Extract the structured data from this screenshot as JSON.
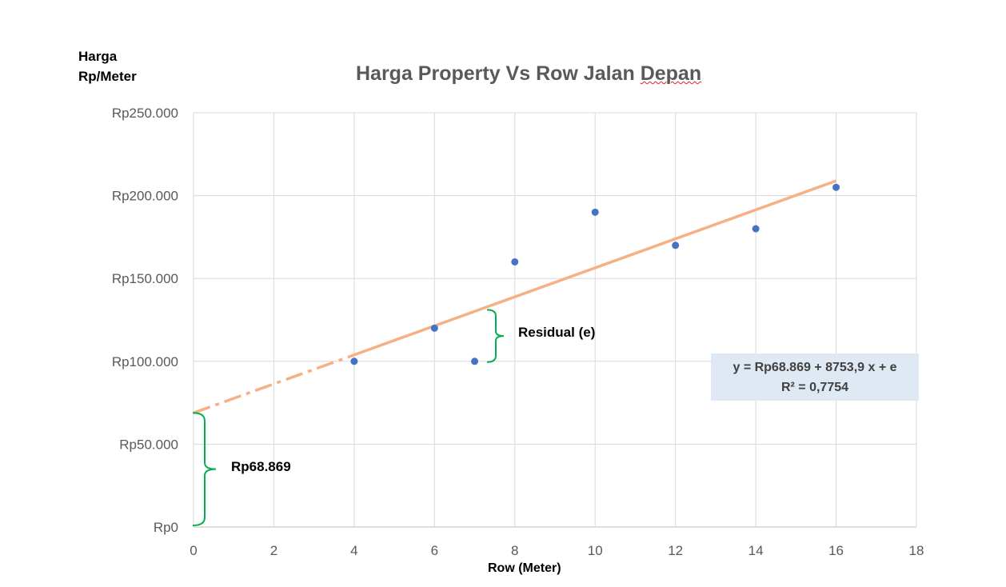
{
  "chart_data": {
    "type": "scatter",
    "title_part1": "Harga Property Vs Row Jalan ",
    "title_part2": "Depan",
    "ylabel_line1": "Harga",
    "ylabel_line2": "Rp/Meter",
    "xlabel": "Row (Meter)",
    "xlim": [
      0,
      18
    ],
    "ylim": [
      0,
      250000
    ],
    "x_ticks": [
      "0",
      "2",
      "4",
      "6",
      "8",
      "10",
      "12",
      "14",
      "16",
      "18"
    ],
    "y_ticks": [
      "Rp0",
      "Rp50.000",
      "Rp100.000",
      "Rp150.000",
      "Rp200.000",
      "Rp250.000"
    ],
    "grid": true,
    "points": [
      {
        "x": 4,
        "y": 100000
      },
      {
        "x": 6,
        "y": 120000
      },
      {
        "x": 7,
        "y": 100000
      },
      {
        "x": 8,
        "y": 160000
      },
      {
        "x": 10,
        "y": 190000
      },
      {
        "x": 12,
        "y": 170000
      },
      {
        "x": 14,
        "y": 180000
      },
      {
        "x": 16,
        "y": 205000
      }
    ],
    "trendline": {
      "intercept": 68869,
      "slope": 8753.9
    },
    "equation_line1": "y = Rp68.869 + 8753,9 x + e",
    "equation_line2": "R² = 0,7754",
    "annotations": {
      "residual": "Residual (e)",
      "intercept": "Rp68.869"
    },
    "colors": {
      "points": "#4472c4",
      "trendline": "#f4b183",
      "brace": "#00b050",
      "grid": "#d9d9d9",
      "equation_bg": "#dfe9f3"
    }
  }
}
